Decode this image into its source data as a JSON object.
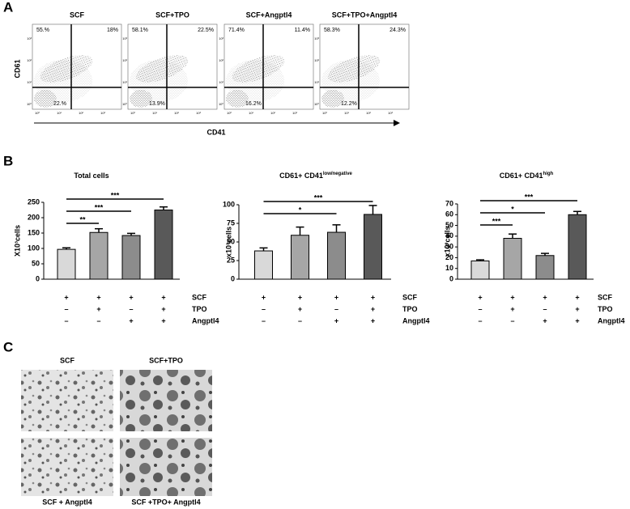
{
  "panel_labels": [
    "A",
    "B",
    "C"
  ],
  "flow": {
    "x_label": "CD41",
    "y_label": "CD61",
    "axis_ticks": [
      "10⁰",
      "10¹",
      "10²",
      "10³"
    ],
    "plots": [
      {
        "title": "SCF",
        "upper_left": "55.%",
        "upper_right": "18%",
        "lower_left": "22.%"
      },
      {
        "title": "SCF+TPO",
        "upper_left": "58.1%",
        "upper_right": "22.5%",
        "lower_left": "13.9%"
      },
      {
        "title": "SCF+Angptl4",
        "upper_left": "71.4%",
        "upper_right": "11.4%",
        "lower_left": "16.2%"
      },
      {
        "title": "SCF+TPO+Angptl4",
        "upper_left": "58.3%",
        "upper_right": "24.3%",
        "lower_left": "12.2%"
      }
    ]
  },
  "chart_data": [
    {
      "type": "bar",
      "title": "Total cells",
      "y_label": "X10³cells",
      "categories": [
        null,
        null,
        null,
        null
      ],
      "values": [
        97,
        152,
        142,
        225
      ],
      "errors": [
        5,
        12,
        7,
        10
      ],
      "colors": [
        "#d9d9d9",
        "#a6a6a6",
        "#8c8c8c",
        "#595959"
      ],
      "ylim": [
        0,
        250
      ],
      "yticks": [
        0,
        50,
        100,
        150,
        200,
        250
      ],
      "significance": [
        {
          "from": 0,
          "to": 3,
          "label": "***"
        },
        {
          "from": 0,
          "to": 2,
          "label": "***"
        },
        {
          "from": 0,
          "to": 1,
          "label": "**"
        }
      ]
    },
    {
      "type": "bar",
      "title": "CD61+ CD41",
      "title_sup": "low/negative",
      "y_label": "x10³cells",
      "categories": [
        null,
        null,
        null,
        null
      ],
      "values": [
        38,
        59,
        63,
        87
      ],
      "errors": [
        4,
        11,
        10,
        12
      ],
      "colors": [
        "#d9d9d9",
        "#a6a6a6",
        "#8c8c8c",
        "#595959"
      ],
      "ylim": [
        0,
        100
      ],
      "yticks": [
        0,
        25,
        50,
        75,
        100
      ],
      "significance": [
        {
          "from": 0,
          "to": 3,
          "label": "***"
        },
        {
          "from": 0,
          "to": 2,
          "label": "*"
        }
      ]
    },
    {
      "type": "bar",
      "title": "CD61+ CD41",
      "title_sup": "high",
      "y_label": "x10³cells",
      "categories": [
        null,
        null,
        null,
        null
      ],
      "values": [
        17,
        38,
        22,
        60
      ],
      "errors": [
        1,
        4,
        2,
        3
      ],
      "colors": [
        "#d9d9d9",
        "#a6a6a6",
        "#8c8c8c",
        "#595959"
      ],
      "ylim": [
        0,
        70
      ],
      "yticks": [
        0,
        10,
        20,
        30,
        40,
        50,
        60,
        70
      ],
      "significance": [
        {
          "from": 0,
          "to": 3,
          "label": "***"
        },
        {
          "from": 0,
          "to": 2,
          "label": "*"
        },
        {
          "from": 0,
          "to": 1,
          "label": "***"
        }
      ]
    }
  ],
  "treatments": {
    "rows": [
      {
        "name": "SCF",
        "signs": [
          "+",
          "+",
          "+",
          "+"
        ]
      },
      {
        "name": "TPO",
        "signs": [
          "–",
          "+",
          "–",
          "+"
        ]
      },
      {
        "name": "Angptl4",
        "signs": [
          "–",
          "–",
          "+",
          "+"
        ]
      }
    ]
  },
  "micrographs": [
    {
      "label": "SCF"
    },
    {
      "label": "SCF+TPO"
    },
    {
      "label": "SCF + Angptl4"
    },
    {
      "label": "SCF +TPO+ Angptl4"
    }
  ]
}
